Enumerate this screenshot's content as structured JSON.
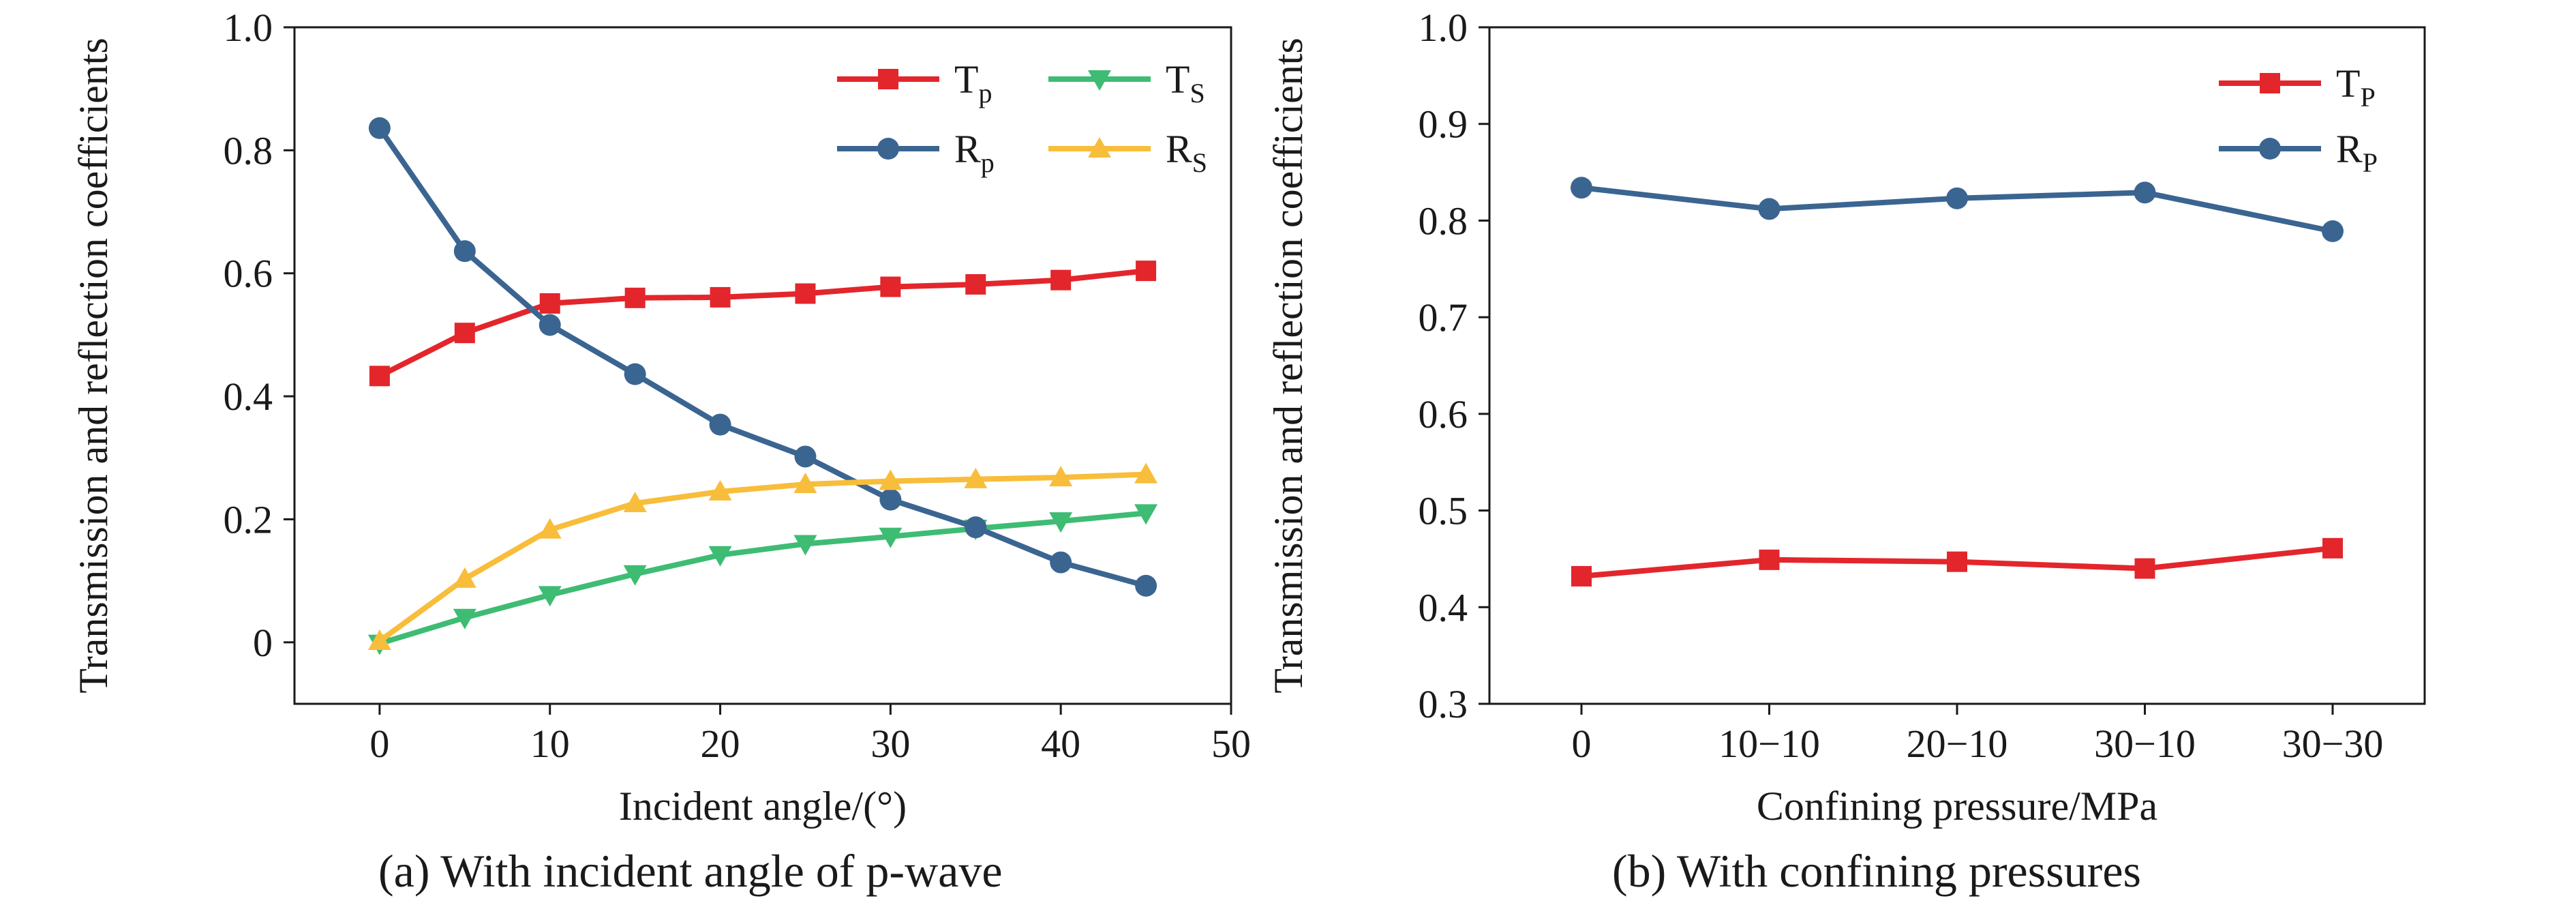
{
  "chart_data": [
    {
      "type": "line",
      "caption": "(a) With incident angle of p-wave",
      "xlabel": "Incident angle/(°)",
      "ylabel": "Transmission and reflection coefficients",
      "xlim": [
        -5,
        50
      ],
      "ylim": [
        -0.1,
        1.0
      ],
      "xticks": [
        0,
        10,
        20,
        30,
        40,
        50
      ],
      "yticks": [
        0,
        0.2,
        0.4,
        0.6,
        0.8,
        1.0
      ],
      "ytick_labels": [
        "0",
        "0.2",
        "0.4",
        "0.6",
        "0.8",
        "1.0"
      ],
      "x": [
        0,
        5,
        10,
        15,
        20,
        25,
        30,
        35,
        40,
        45
      ],
      "legend_position": "top-right, two columns",
      "grid": false,
      "series": [
        {
          "name_main": "T",
          "name_sub": "p",
          "color": "#e3262b",
          "marker": "square",
          "values": [
            0.433,
            0.503,
            0.551,
            0.56,
            0.561,
            0.567,
            0.578,
            0.582,
            0.589,
            0.604
          ]
        },
        {
          "name_main": "T",
          "name_sub": "S",
          "color": "#3ebc73",
          "marker": "triangle-down",
          "values": [
            -0.002,
            0.04,
            0.077,
            0.111,
            0.142,
            0.16,
            0.172,
            0.185,
            0.197,
            0.21
          ]
        },
        {
          "name_main": "R",
          "name_sub": "p",
          "color": "#3b6591",
          "marker": "circle",
          "values": [
            0.836,
            0.636,
            0.516,
            0.436,
            0.354,
            0.302,
            0.232,
            0.187,
            0.13,
            0.092
          ]
        },
        {
          "name_main": "R",
          "name_sub": "S",
          "color": "#f8bd3a",
          "marker": "triangle-up",
          "values": [
            0.002,
            0.103,
            0.183,
            0.226,
            0.245,
            0.257,
            0.262,
            0.265,
            0.268,
            0.273
          ]
        }
      ]
    },
    {
      "type": "line",
      "caption": "(b) With confining pressures",
      "xlabel": "Confining pressure/MPa",
      "ylabel": "Transmission and reflection coefficients",
      "categories": [
        "0",
        "10−10",
        "20−10",
        "30−10",
        "30−30"
      ],
      "ylim": [
        0.3,
        1.0
      ],
      "yticks": [
        0.3,
        0.4,
        0.5,
        0.6,
        0.7,
        0.8,
        0.9,
        1.0
      ],
      "ytick_labels": [
        "0.3",
        "0.4",
        "0.5",
        "0.6",
        "0.7",
        "0.8",
        "0.9",
        "1.0"
      ],
      "legend_position": "top-right",
      "grid": false,
      "series": [
        {
          "name_main": "T",
          "name_sub": "P",
          "color": "#e3262b",
          "marker": "square",
          "values": [
            0.432,
            0.449,
            0.447,
            0.44,
            0.461
          ]
        },
        {
          "name_main": "R",
          "name_sub": "P",
          "color": "#3b6591",
          "marker": "circle",
          "values": [
            0.834,
            0.812,
            0.823,
            0.829,
            0.789
          ]
        }
      ]
    }
  ]
}
